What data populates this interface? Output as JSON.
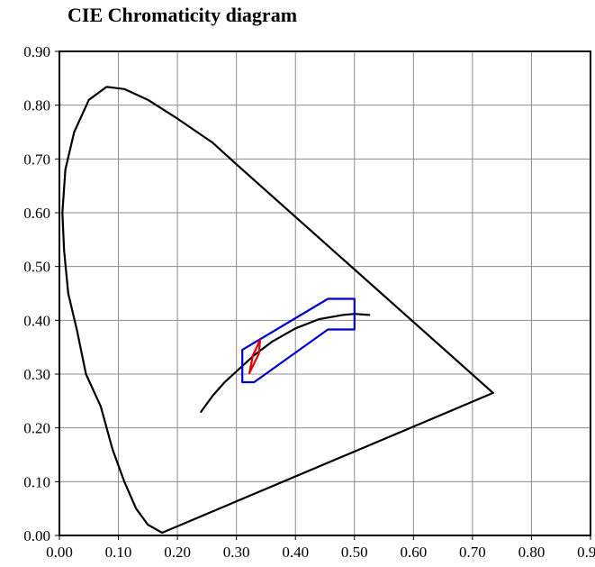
{
  "chart_data": {
    "type": "line",
    "title": "CIE Chromaticity diagram",
    "xlabel": "",
    "ylabel": "",
    "xlim": [
      0,
      0.9
    ],
    "ylim": [
      0,
      0.9
    ],
    "x_ticks": [
      "0.00",
      "0.10",
      "0.20",
      "0.30",
      "0.40",
      "0.50",
      "0.60",
      "0.70",
      "0.80",
      "0.90"
    ],
    "y_ticks": [
      "0.00",
      "0.10",
      "0.20",
      "0.30",
      "0.40",
      "0.50",
      "0.60",
      "0.70",
      "0.80",
      "0.90"
    ],
    "grid": true,
    "legend": "none",
    "series": [
      {
        "color": "#000000",
        "points": [
          [
            0.174,
            0.005
          ],
          [
            0.15,
            0.02
          ],
          [
            0.13,
            0.05
          ],
          [
            0.11,
            0.1
          ],
          [
            0.09,
            0.16
          ],
          [
            0.07,
            0.24
          ],
          [
            0.045,
            0.3
          ],
          [
            0.03,
            0.38
          ],
          [
            0.015,
            0.45
          ],
          [
            0.008,
            0.53
          ],
          [
            0.005,
            0.6
          ],
          [
            0.01,
            0.68
          ],
          [
            0.025,
            0.75
          ],
          [
            0.05,
            0.81
          ],
          [
            0.08,
            0.834
          ],
          [
            0.11,
            0.83
          ],
          [
            0.15,
            0.81
          ],
          [
            0.2,
            0.775
          ],
          [
            0.26,
            0.73
          ],
          [
            0.3,
            0.69
          ],
          [
            0.735,
            0.265
          ],
          [
            0.174,
            0.005
          ]
        ]
      },
      {
        "color": "#000000",
        "points": [
          [
            0.24,
            0.23
          ],
          [
            0.26,
            0.26
          ],
          [
            0.28,
            0.285
          ],
          [
            0.3,
            0.305
          ],
          [
            0.33,
            0.335
          ],
          [
            0.36,
            0.36
          ],
          [
            0.4,
            0.385
          ],
          [
            0.44,
            0.402
          ],
          [
            0.48,
            0.41
          ],
          [
            0.5,
            0.412
          ],
          [
            0.525,
            0.41
          ]
        ]
      },
      {
        "color": "#0000cc",
        "points": [
          [
            0.31,
            0.345
          ],
          [
            0.31,
            0.285
          ],
          [
            0.33,
            0.285
          ],
          [
            0.455,
            0.383
          ],
          [
            0.5,
            0.383
          ],
          [
            0.5,
            0.44
          ],
          [
            0.455,
            0.44
          ],
          [
            0.31,
            0.345
          ]
        ]
      },
      {
        "color": "#dd0000",
        "points": [
          [
            0.322,
            0.302
          ],
          [
            0.328,
            0.335
          ],
          [
            0.34,
            0.363
          ],
          [
            0.338,
            0.338
          ],
          [
            0.322,
            0.302
          ]
        ]
      }
    ]
  }
}
